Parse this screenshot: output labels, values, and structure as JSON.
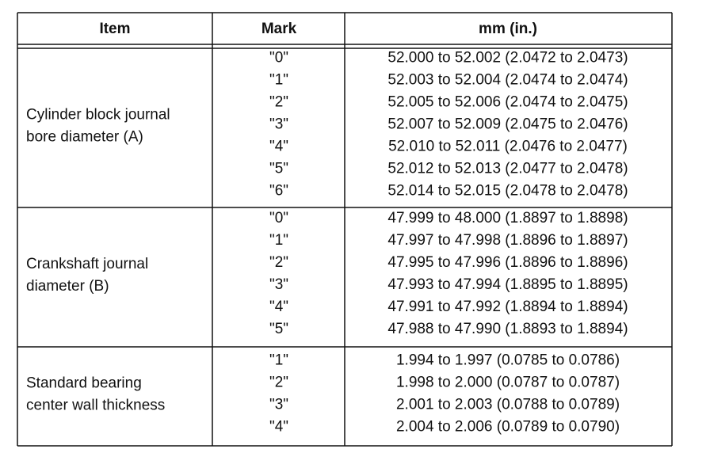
{
  "table": {
    "header": [
      "Item",
      "Mark",
      "mm (in.)"
    ],
    "groups": [
      {
        "item": [
          "Cylinder block journal",
          "bore diameter (A)"
        ],
        "rows": [
          {
            "mark": "\"0\"",
            "value": "52.000 to 52.002 (2.0472 to 2.0473)"
          },
          {
            "mark": "\"1\"",
            "value": "52.003 to 52.004 (2.0474 to 2.0474)"
          },
          {
            "mark": "\"2\"",
            "value": "52.005 to 52.006 (2.0474 to 2.0475)"
          },
          {
            "mark": "\"3\"",
            "value": "52.007 to 52.009 (2.0475 to 2.0476)"
          },
          {
            "mark": "\"4\"",
            "value": "52.010 to 52.011 (2.0476 to 2.0477)"
          },
          {
            "mark": "\"5\"",
            "value": "52.012 to 52.013 (2.0477 to 2.0478)"
          },
          {
            "mark": "\"6\"",
            "value": "52.014 to 52.015 (2.0478 to 2.0478)"
          }
        ]
      },
      {
        "item": [
          "Crankshaft journal",
          "diameter (B)"
        ],
        "rows": [
          {
            "mark": "\"0\"",
            "value": "47.999 to 48.000 (1.8897 to 1.8898)"
          },
          {
            "mark": "\"1\"",
            "value": "47.997 to 47.998 (1.8896 to 1.8897)"
          },
          {
            "mark": "\"2\"",
            "value": "47.995 to 47.996 (1.8896 to 1.8896)"
          },
          {
            "mark": "\"3\"",
            "value": "47.993 to 47.994 (1.8895 to 1.8895)"
          },
          {
            "mark": "\"4\"",
            "value": "47.991 to 47.992 (1.8894 to 1.8894)"
          },
          {
            "mark": "\"5\"",
            "value": "47.988 to 47.990 (1.8893 to 1.8894)"
          }
        ]
      },
      {
        "item": [
          "Standard bearing",
          "center wall thickness"
        ],
        "rows": [
          {
            "mark": "\"1\"",
            "value": "1.994 to 1.997 (0.0785 to 0.0786)"
          },
          {
            "mark": "\"2\"",
            "value": "1.998 to 2.000 (0.0787 to 0.0787)"
          },
          {
            "mark": "\"3\"",
            "value": "2.001 to 2.003 (0.0788 to 0.0789)"
          },
          {
            "mark": "\"4\"",
            "value": "2.004 to 2.006 (0.0789 to 0.0790)"
          }
        ]
      }
    ]
  }
}
